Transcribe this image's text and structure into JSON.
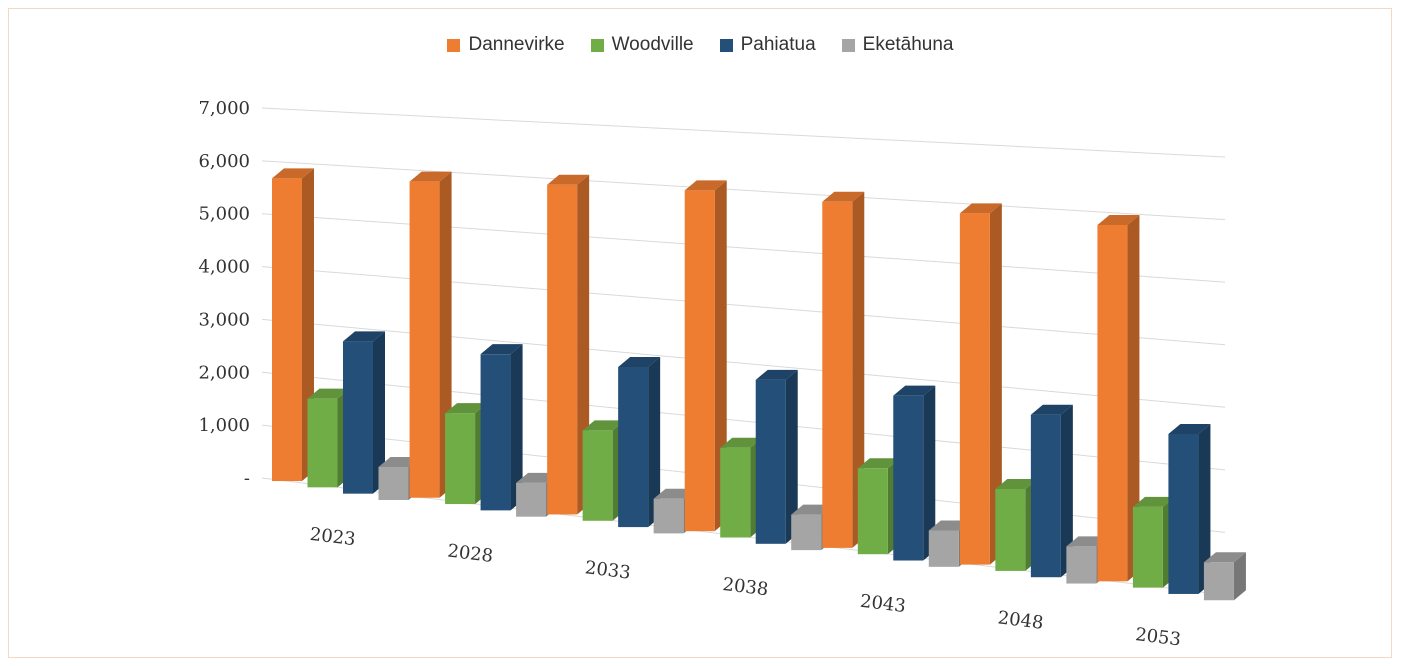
{
  "chart_data": {
    "type": "bar",
    "subtype": "3d-clustered-column",
    "categories": [
      "2023",
      "2028",
      "2033",
      "2038",
      "2043",
      "2048",
      "2053"
    ],
    "series": [
      {
        "name": "Dannevirke",
        "color": "#ee7d31",
        "values": [
          5700,
          5800,
          5900,
          5950,
          5900,
          5850,
          5800
        ]
      },
      {
        "name": "Woodville",
        "color": "#71ad47",
        "values": [
          1650,
          1650,
          1600,
          1550,
          1450,
          1350,
          1300
        ]
      },
      {
        "name": "Pahiatua",
        "color": "#234f78",
        "values": [
          2800,
          2800,
          2800,
          2800,
          2750,
          2650,
          2550
        ]
      },
      {
        "name": "Eketāhuna",
        "color": "#a5a5a5",
        "values": [
          600,
          600,
          600,
          600,
          600,
          600,
          600
        ]
      }
    ],
    "y_ticks": [
      "-",
      "1,000",
      "2,000",
      "3,000",
      "4,000",
      "5,000",
      "6,000",
      "7,000"
    ],
    "ylim": [
      0,
      7000
    ],
    "grid": true,
    "legend_position": "top-center"
  }
}
